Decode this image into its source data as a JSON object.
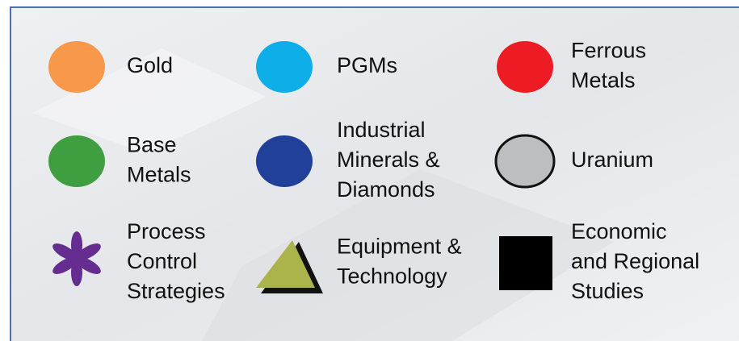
{
  "items": [
    {
      "lines": [
        "Gold"
      ]
    },
    {
      "lines": [
        "PGMs"
      ]
    },
    {
      "lines": [
        "Ferrous",
        "Metals"
      ]
    },
    {
      "lines": [
        "Base",
        "Metals"
      ]
    },
    {
      "lines": [
        "Industrial",
        "Minerals &",
        "Diamonds"
      ]
    },
    {
      "lines": [
        "Uranium"
      ]
    },
    {
      "lines": [
        "Process",
        "Control",
        "Strategies"
      ]
    },
    {
      "lines": [
        "Equipment &",
        "Technology"
      ]
    },
    {
      "lines": [
        "Economic",
        "and Regional",
        "Studies"
      ]
    }
  ]
}
